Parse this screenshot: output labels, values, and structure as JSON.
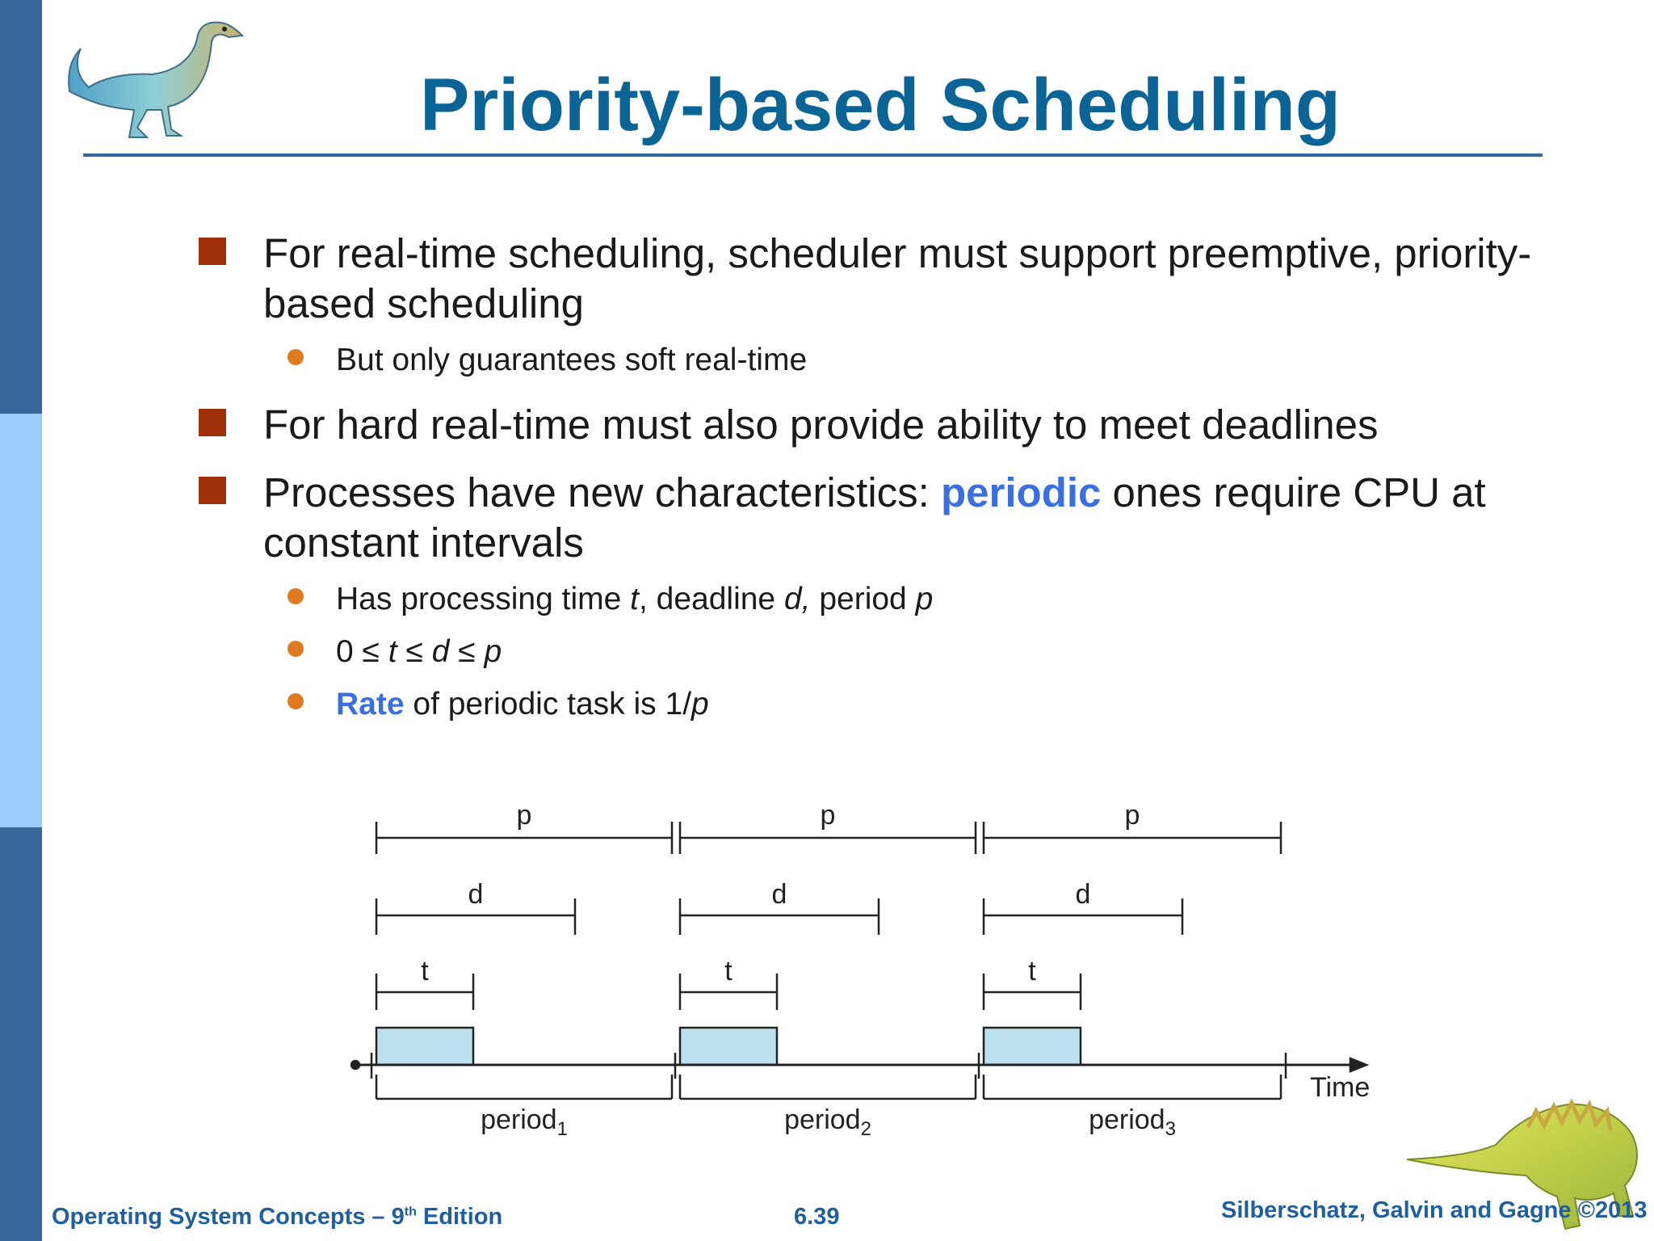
{
  "slide": {
    "title": "Priority-based Scheduling",
    "bullets": [
      {
        "text": "For real-time scheduling, scheduler must support preemptive, priority-based scheduling",
        "line1": "For real-time scheduling, scheduler must support preemptive, priority-",
        "line2": "based scheduling",
        "sub": [
          {
            "text": "But only guarantees soft real-time"
          }
        ]
      },
      {
        "text": "For hard real-time must also provide ability to meet deadlines"
      },
      {
        "prefix": "Processes have new characteristics: ",
        "highlight": "periodic",
        "suffix": " ones require CPU at",
        "line2": "constant intervals",
        "sub": [
          {
            "t1": "Has processing time ",
            "v1": "t",
            "t2": ", deadline ",
            "v2": "d,",
            "t3": " period ",
            "v3": "p"
          },
          {
            "t1": "0 ≤ ",
            "v1": "t",
            "t2": " ≤ ",
            "v2": "d",
            "t3": " ≤ ",
            "v3": "p"
          },
          {
            "highlight": "Rate",
            "t1": " of periodic task is 1/",
            "v1": "p"
          }
        ]
      }
    ]
  },
  "diagram": {
    "labels": {
      "p": "p",
      "d": "d",
      "t": "t",
      "time": "Time",
      "periods": [
        {
          "base": "period",
          "sub": "1"
        },
        {
          "base": "period",
          "sub": "2"
        },
        {
          "base": "period",
          "sub": "3"
        }
      ]
    },
    "colors": {
      "burst_fill": "#bde0ee",
      "line": "#222222"
    }
  },
  "footer": {
    "left_prefix": "Operating System Concepts – 9",
    "left_sup": "th",
    "left_suffix": " Edition",
    "page": "6.39",
    "right": "Silberschatz, Galvin and Gagne ©2013"
  },
  "colors": {
    "title": "#0a6496",
    "accent": "#3a6fe0",
    "bullet_square": "#a0300a",
    "bullet_dot": "#e07a1f",
    "sidebar_dark": "#336699",
    "sidebar_light": "#99ccff"
  },
  "icons": {
    "top": "dinosaur-illustration-icon",
    "bottom": "dinosaur-illustration-icon"
  }
}
